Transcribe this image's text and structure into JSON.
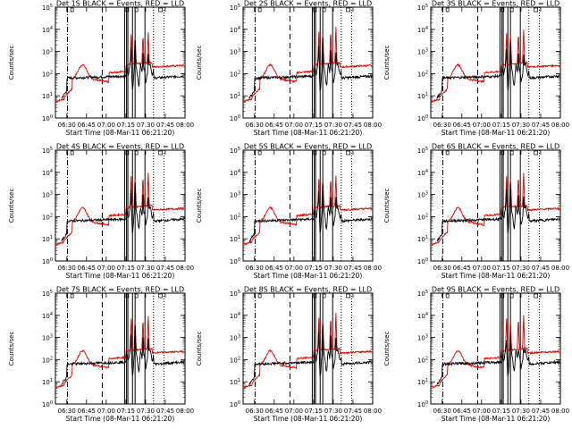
{
  "figure": {
    "background": "#ffffff"
  },
  "colors": {
    "events": "#000000",
    "lld": "#dd0000",
    "axes": "#000000"
  },
  "chart_data": [
    {
      "type": "line",
      "title": "Det 1S BLACK = Events, RED = LLD",
      "xlabel": "Start Time (08-Mar-11 06:21:20)",
      "ylabel": "Counts/sec",
      "y_scale": "log",
      "ylim": [
        1,
        100000
      ],
      "x_ticks": [
        "06:30",
        "06:45",
        "07:00",
        "07:15",
        "07:30",
        "07:45",
        "08:00"
      ],
      "y_ticks": [
        "10^0",
        "10^1",
        "10^2",
        "10^3",
        "10^4",
        "10^5"
      ],
      "grid": false
    },
    {
      "type": "line",
      "title": "Det 2S BLACK = Events, RED = LLD",
      "xlabel": "Start Time (08-Mar-11 06:21:20)",
      "ylabel": "Counts/sec",
      "y_scale": "log",
      "ylim": [
        1,
        100000
      ],
      "x_ticks": [
        "06:30",
        "06:45",
        "07:00",
        "07:15",
        "07:30",
        "07:45",
        "08:00"
      ],
      "y_ticks": [
        "10^0",
        "10^1",
        "10^2",
        "10^3",
        "10^4",
        "10^5"
      ],
      "grid": false
    },
    {
      "type": "line",
      "title": "Det 3S BLACK = Events, RED = LLD",
      "xlabel": "Start Time (08-Mar-11 06:21:20)",
      "ylabel": "Counts/sec",
      "y_scale": "log",
      "ylim": [
        1,
        100000
      ],
      "x_ticks": [
        "06:30",
        "06:45",
        "07:00",
        "07:15",
        "07:30",
        "07:45",
        "08:00"
      ],
      "y_ticks": [
        "10^0",
        "10^1",
        "10^2",
        "10^3",
        "10^4",
        "10^5"
      ],
      "grid": false
    },
    {
      "type": "line",
      "title": "Det 4S BLACK = Events, RED = LLD",
      "xlabel": "Start Time (08-Mar-11 06:21:20)",
      "ylabel": "Counts/sec",
      "y_scale": "log",
      "ylim": [
        1,
        100000
      ],
      "x_ticks": [
        "06:30",
        "06:45",
        "07:00",
        "07:15",
        "07:30",
        "07:45",
        "08:00"
      ],
      "y_ticks": [
        "10^0",
        "10^1",
        "10^2",
        "10^3",
        "10^4",
        "10^5"
      ],
      "grid": false
    },
    {
      "type": "line",
      "title": "Det 5S BLACK = Events, RED = LLD",
      "xlabel": "Start Time (08-Mar-11 06:21:20)",
      "ylabel": "Counts/sec",
      "y_scale": "log",
      "ylim": [
        1,
        100000
      ],
      "x_ticks": [
        "06:30",
        "06:45",
        "07:00",
        "07:15",
        "07:30",
        "07:45",
        "08:00"
      ],
      "y_ticks": [
        "10^0",
        "10^1",
        "10^2",
        "10^3",
        "10^4",
        "10^5"
      ],
      "grid": false
    },
    {
      "type": "line",
      "title": "Det 6S BLACK = Events, RED = LLD",
      "xlabel": "Start Time (08-Mar-11 06:21:20)",
      "ylabel": "Counts/sec",
      "y_scale": "log",
      "ylim": [
        1,
        100000
      ],
      "x_ticks": [
        "06:30",
        "06:45",
        "07:00",
        "07:15",
        "07:30",
        "07:45",
        "08:00"
      ],
      "y_ticks": [
        "10^0",
        "10^1",
        "10^2",
        "10^3",
        "10^4",
        "10^5"
      ],
      "grid": false
    },
    {
      "type": "line",
      "title": "Det 7S BLACK = Events, RED = LLD",
      "xlabel": "Start Time (08-Mar-11 06:21:20)",
      "ylabel": "Counts/sec",
      "y_scale": "log",
      "ylim": [
        1,
        100000
      ],
      "x_ticks": [
        "06:30",
        "06:45",
        "07:00",
        "07:15",
        "07:30",
        "07:45",
        "08:00"
      ],
      "y_ticks": [
        "10^0",
        "10^1",
        "10^2",
        "10^3",
        "10^4",
        "10^5"
      ],
      "grid": false
    },
    {
      "type": "line",
      "title": "Det 8S BLACK = Events, RED = LLD",
      "xlabel": "Start Time (08-Mar-11 06:21:20)",
      "ylabel": "Counts/sec",
      "y_scale": "log",
      "ylim": [
        1,
        100000
      ],
      "x_ticks": [
        "06:30",
        "06:45",
        "07:00",
        "07:15",
        "07:30",
        "07:45",
        "08:00"
      ],
      "y_ticks": [
        "10^0",
        "10^1",
        "10^2",
        "10^3",
        "10^4",
        "10^5"
      ],
      "grid": false
    },
    {
      "type": "line",
      "title": "Det 9S BLACK = Events, RED = LLD",
      "xlabel": "Start Time (08-Mar-11 06:21:20)",
      "ylabel": "Counts/sec",
      "y_scale": "log",
      "ylim": [
        1,
        100000
      ],
      "x_ticks": [
        "06:30",
        "06:45",
        "07:00",
        "07:15",
        "07:30",
        "07:45",
        "08:00"
      ],
      "y_ticks": [
        "10^0",
        "10^1",
        "10^2",
        "10^3",
        "10^4",
        "10^5"
      ],
      "grid": false
    }
  ]
}
